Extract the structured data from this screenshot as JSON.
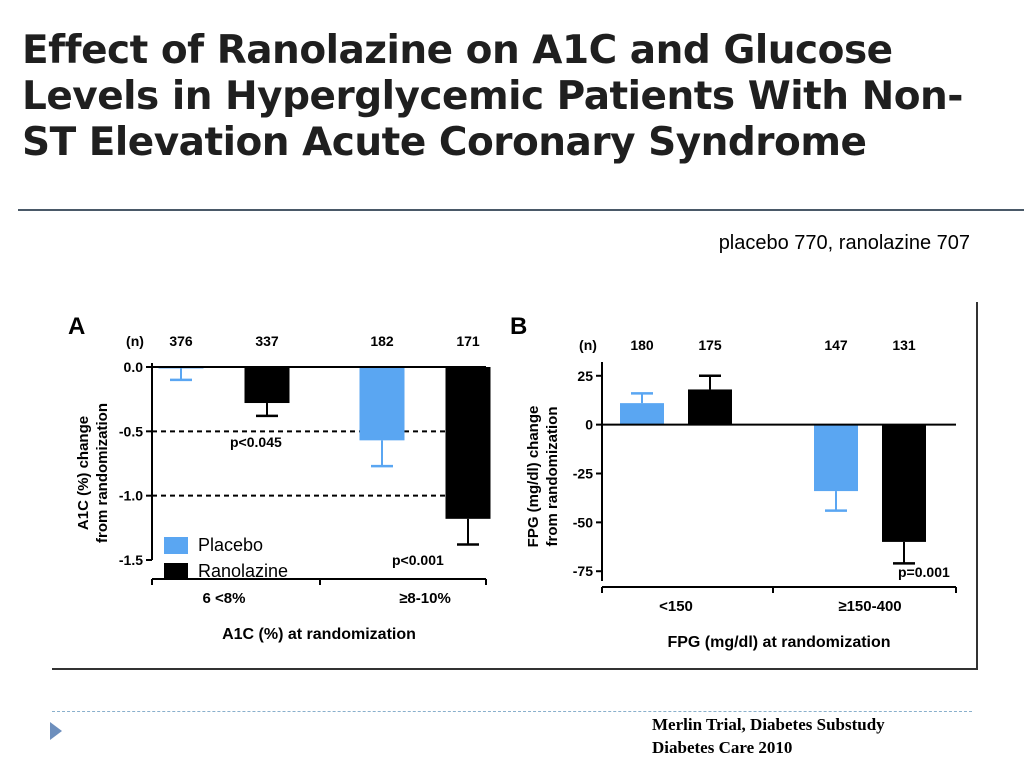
{
  "slide": {
    "title": "Effect of Ranolazine on A1C and Glucose Levels in Hyperglycemic Patients With Non-ST Elevation Acute Coronary Syndrome",
    "subtitle": "placebo 770, ranolazine 707",
    "citation_line1": "Merlin Trial, Diabetes Substudy",
    "citation_line2": "Diabetes Care 2010"
  },
  "colors": {
    "placebo": "#5aa6f2",
    "ranolazine": "#000000",
    "rule": "#4a5968",
    "accent": "#6d8fbd"
  },
  "chart_data": [
    {
      "panel": "A",
      "type": "bar",
      "n_label": "(n)",
      "xlabel": "A1C (%) at randomization",
      "ylabel": "A1C (%) change from randomization",
      "ylim": [
        -1.5,
        0.0
      ],
      "yticks": [
        "0.0",
        "-0.5",
        "-1.0",
        "-1.5"
      ],
      "ytick_values": [
        0.0,
        -0.5,
        -1.0,
        -1.5
      ],
      "reference_lines": [
        -0.5,
        -1.0
      ],
      "categories": [
        "6 <8%",
        "≥8-10%"
      ],
      "series": [
        {
          "name": "Placebo",
          "values": [
            -0.01,
            -0.57
          ],
          "error": [
            0.09,
            0.2
          ],
          "n": [
            "376",
            "182"
          ]
        },
        {
          "name": "Ranolazine",
          "values": [
            -0.28,
            -1.18
          ],
          "error": [
            0.1,
            0.2
          ],
          "n": [
            "337",
            "171"
          ]
        }
      ],
      "annotations": [
        "p<0.045",
        "p<0.001"
      ],
      "legend": [
        "Placebo",
        "Ranolazine"
      ],
      "legend_position": "bottom-left"
    },
    {
      "panel": "B",
      "type": "bar",
      "n_label": "(n)",
      "xlabel": "FPG (mg/dl) at randomization",
      "ylabel": "FPG (mg/dl) change from randomization",
      "ylim": [
        -80,
        30
      ],
      "yticks": [
        "25",
        "0",
        "-25",
        "-50",
        "-75"
      ],
      "ytick_values": [
        25,
        0,
        -25,
        -50,
        -75
      ],
      "categories": [
        "<150",
        "≥150-400"
      ],
      "series": [
        {
          "name": "Placebo",
          "values": [
            11,
            -34
          ],
          "error": [
            5,
            10
          ],
          "n": [
            "180",
            "147"
          ]
        },
        {
          "name": "Ranolazine",
          "values": [
            18,
            -60
          ],
          "error": [
            7,
            11
          ],
          "n": [
            "175",
            "131"
          ]
        }
      ],
      "annotations": [
        "p=0.001"
      ]
    }
  ]
}
